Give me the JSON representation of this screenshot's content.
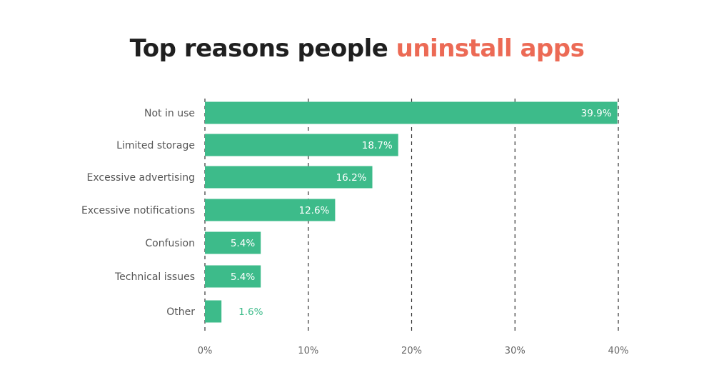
{
  "chart_data": {
    "type": "bar",
    "orientation": "horizontal",
    "title_part1": "Top reasons people",
    "title_part2": "uninstall apps",
    "categories": [
      "Not in use",
      "Limited storage",
      "Excessive advertising",
      "Excessive notifications",
      "Confusion",
      "Technical issues",
      "Other"
    ],
    "values": [
      39.9,
      18.7,
      16.2,
      12.6,
      5.4,
      5.4,
      1.6
    ],
    "value_labels": [
      "39.9%",
      "18.7%",
      "16.2%",
      "12.6%",
      "5.4%",
      "5.4%",
      "1.6%"
    ],
    "xlim": [
      0,
      40
    ],
    "xticks": [
      0,
      10,
      20,
      30,
      40
    ],
    "xtick_labels": [
      "0%",
      "10%",
      "20%",
      "30%",
      "40%"
    ],
    "grid": "vertical dashed",
    "colors": {
      "bar": "#3dbb8a",
      "title_accent": "#ec6a55",
      "title": "#1f1f1f"
    }
  }
}
